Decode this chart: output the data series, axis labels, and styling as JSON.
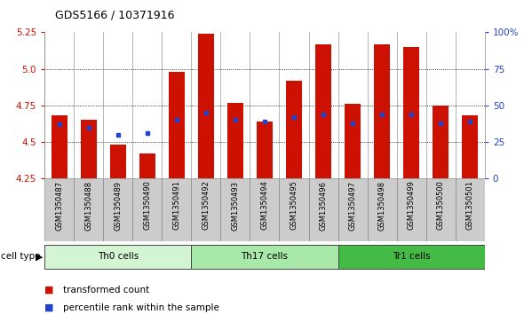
{
  "title": "GDS5166 / 10371916",
  "samples": [
    "GSM1350487",
    "GSM1350488",
    "GSM1350489",
    "GSM1350490",
    "GSM1350491",
    "GSM1350492",
    "GSM1350493",
    "GSM1350494",
    "GSM1350495",
    "GSM1350496",
    "GSM1350497",
    "GSM1350498",
    "GSM1350499",
    "GSM1350500",
    "GSM1350501"
  ],
  "red_values": [
    4.68,
    4.65,
    4.48,
    4.42,
    4.98,
    5.24,
    4.77,
    4.64,
    4.92,
    5.17,
    4.76,
    5.17,
    5.15,
    4.75,
    4.68
  ],
  "blue_values": [
    4.62,
    4.6,
    4.55,
    4.56,
    4.65,
    4.7,
    4.65,
    4.64,
    4.67,
    4.69,
    4.63,
    4.69,
    4.69,
    4.63,
    4.64
  ],
  "y_min": 4.25,
  "y_max": 5.25,
  "y_ticks_left": [
    4.25,
    4.5,
    4.75,
    5.0,
    5.25
  ],
  "y_ticks_right": [
    0,
    25,
    50,
    75,
    100
  ],
  "grid_vals": [
    4.5,
    4.75,
    5.0
  ],
  "cell_groups": [
    {
      "label": "Th0 cells",
      "start": 0,
      "end": 5,
      "color": "#d4f5d4"
    },
    {
      "label": "Th17 cells",
      "start": 5,
      "end": 10,
      "color": "#a8e8a8"
    },
    {
      "label": "Tr1 cells",
      "start": 10,
      "end": 15,
      "color": "#44bb44"
    }
  ],
  "bar_width": 0.55,
  "red_color": "#cc1100",
  "blue_color": "#2244cc",
  "plot_bg": "#ffffff",
  "tick_bg": "#cccccc",
  "left_color": "#cc1100",
  "right_color": "#2244bb"
}
